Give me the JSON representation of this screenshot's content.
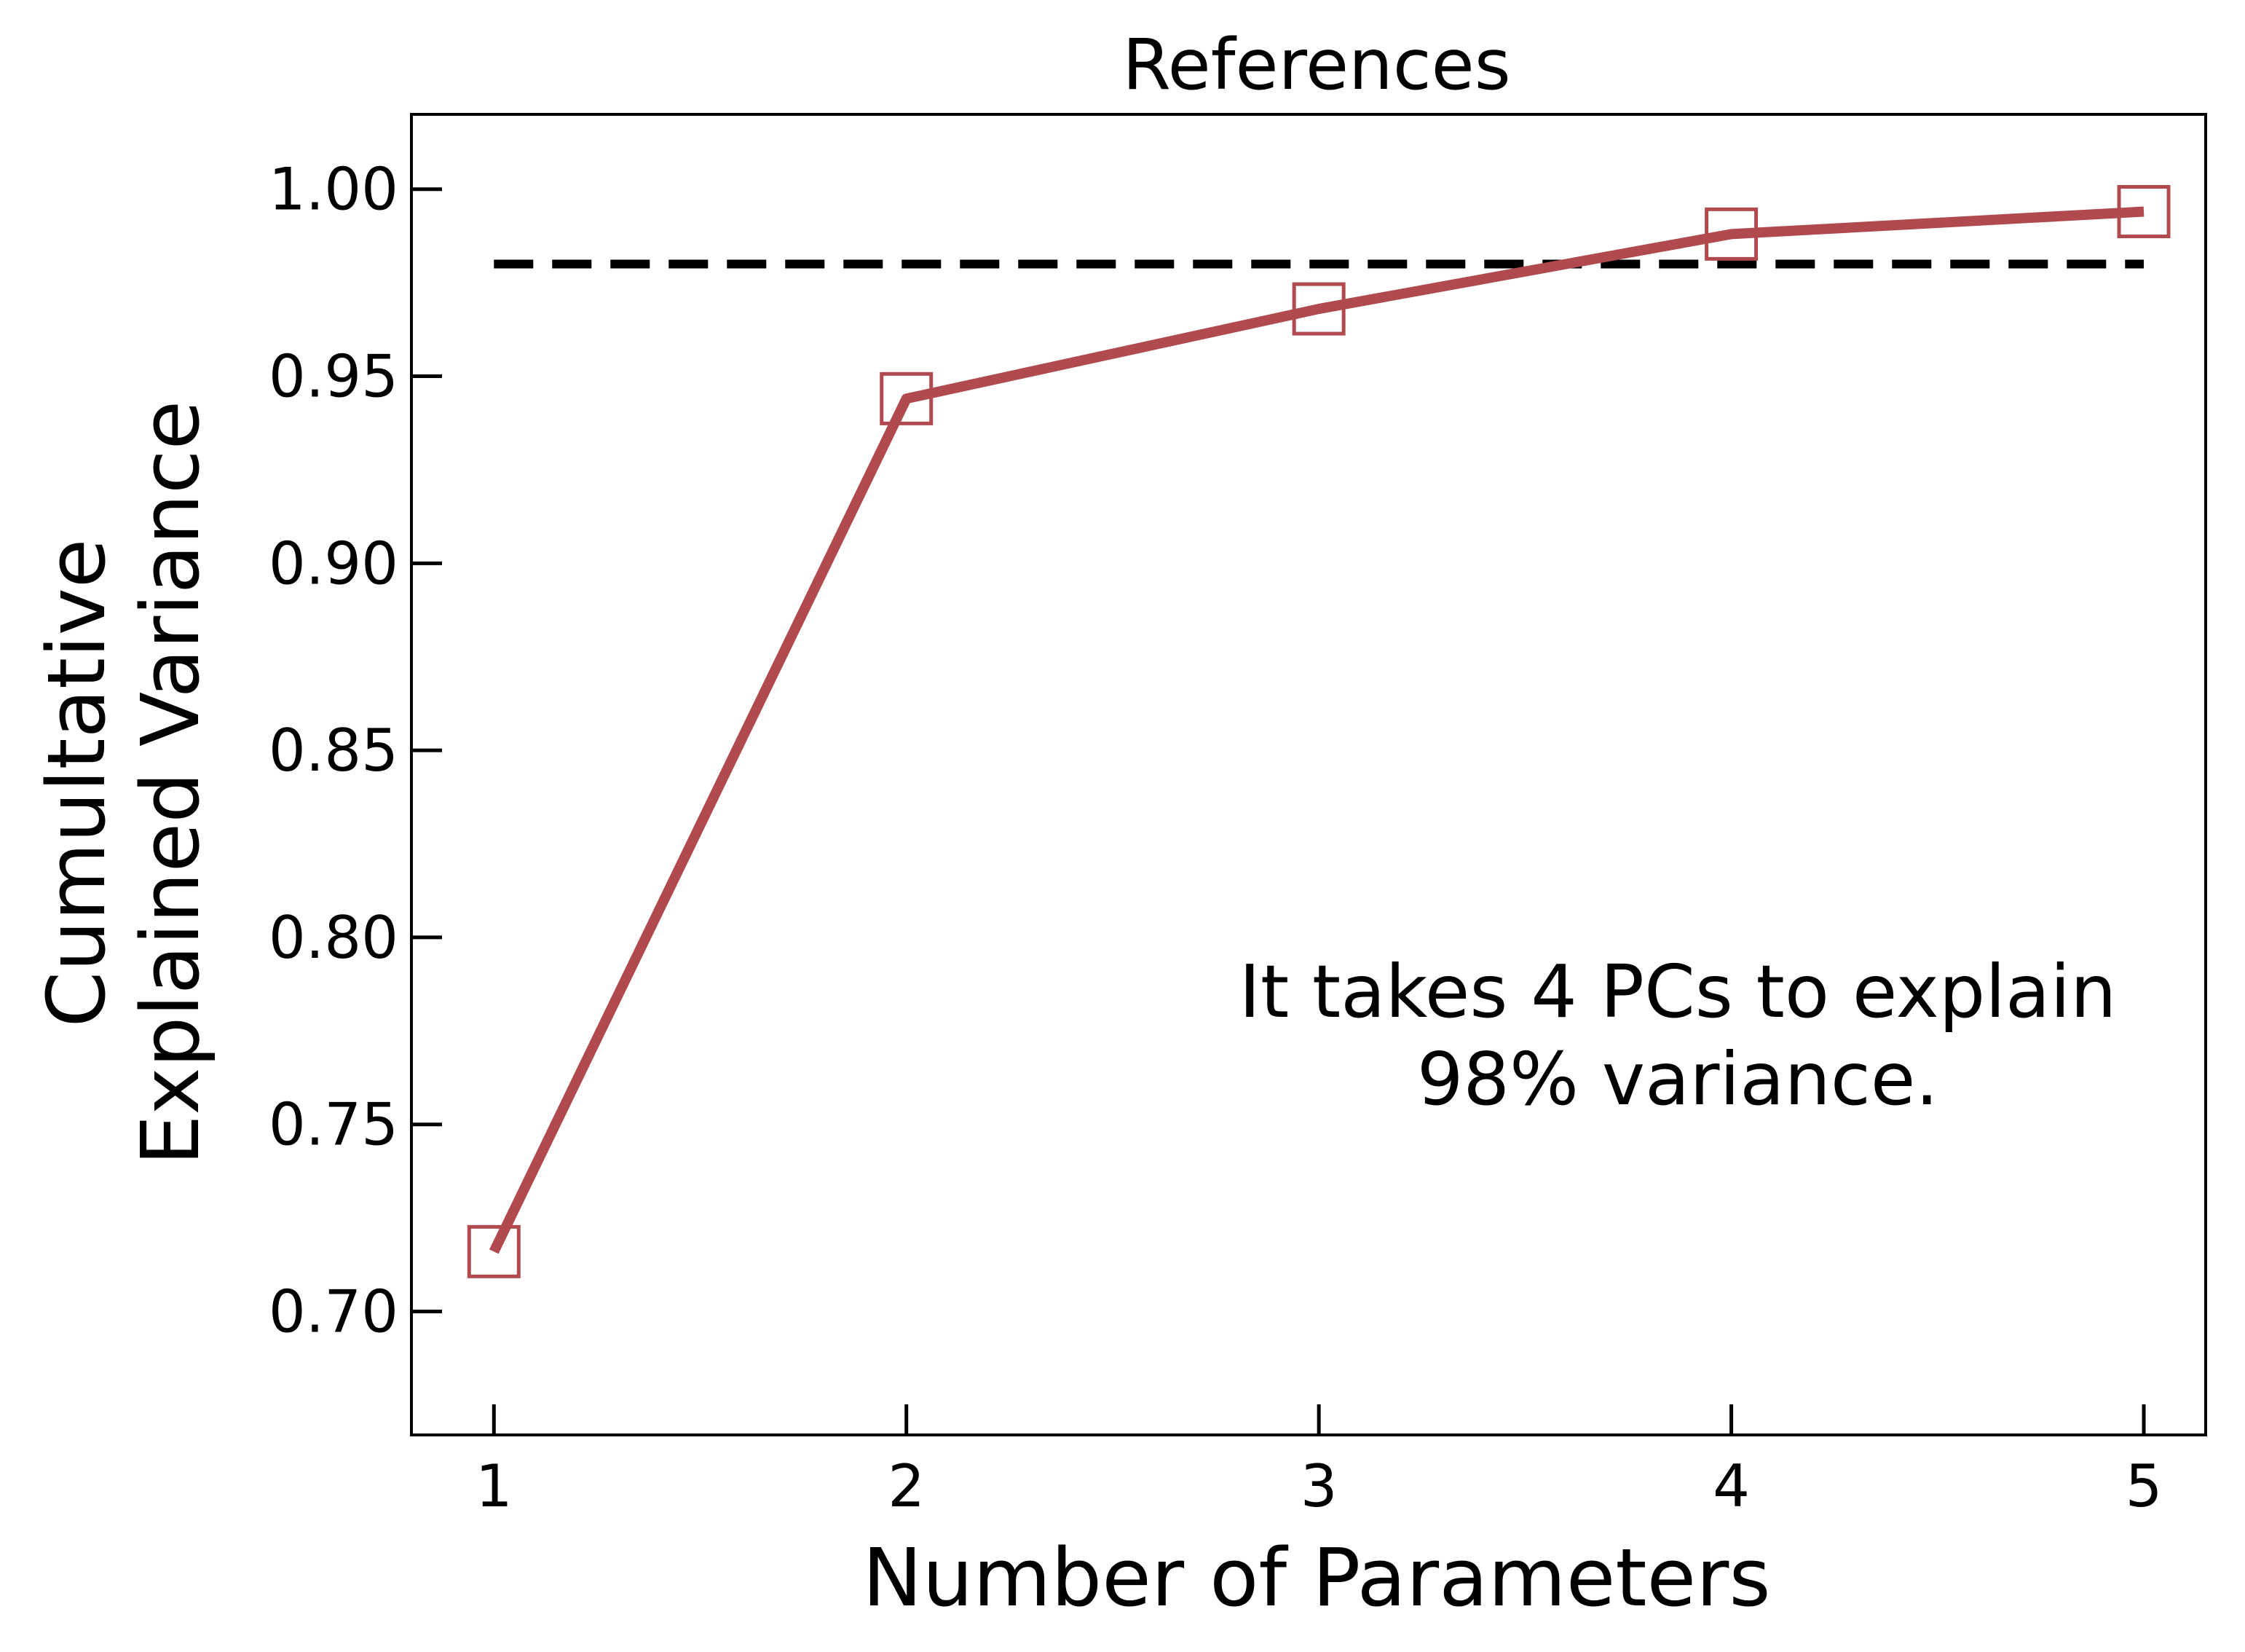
{
  "chart_data": {
    "type": "line",
    "title": "References",
    "xlabel": "Number of Parameters",
    "ylabel_lines": [
      "Cumultative",
      "Explained Variance"
    ],
    "x": [
      1,
      2,
      3,
      4,
      5
    ],
    "xticks": [
      "1",
      "2",
      "3",
      "4",
      "5"
    ],
    "xlim": [
      0.8,
      5.15
    ],
    "yticks": [
      "0.70",
      "0.75",
      "0.80",
      "0.85",
      "0.90",
      "0.95",
      "1.00"
    ],
    "ylim": [
      0.667,
      1.02
    ],
    "series": [
      {
        "values": [
          0.716,
          0.944,
          0.968,
          0.988,
          0.994
        ],
        "color": "#b04a4f",
        "marker": "hollow-square"
      }
    ],
    "threshold": {
      "y": 0.98,
      "style": "dashed",
      "color": "#000000"
    },
    "annotation_lines": [
      "It takes 4 PCs to explain",
      "98% variance."
    ],
    "grid": false,
    "legend": "none"
  }
}
